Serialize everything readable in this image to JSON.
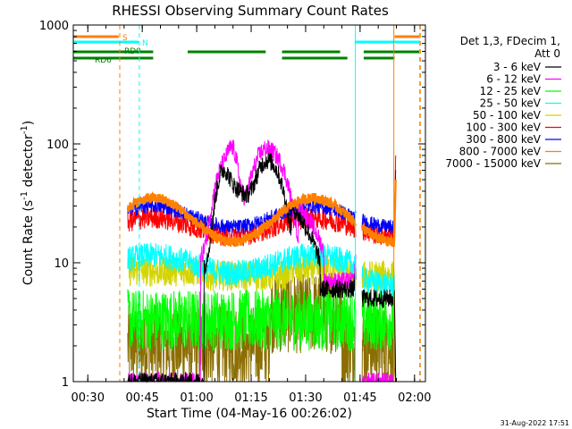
{
  "chart_data": {
    "type": "line",
    "title": "RHESSI Observing Summary Count Rates",
    "xlabel": "Start Time (04-May-16 00:26:02)",
    "ylabel_main": "Count Rate (s",
    "ylabel_sup": "-1",
    "ylabel_mid": " detector",
    "ylabel_sup2": "-1",
    "ylabel_end": ")",
    "x_range_min": [
      26.0,
      123.0
    ],
    "y_scale": "log",
    "y_range": [
      1,
      1000
    ],
    "x_ticks": [
      {
        "min": 30,
        "label": "00:30"
      },
      {
        "min": 45,
        "label": "00:45"
      },
      {
        "min": 60,
        "label": "01:00"
      },
      {
        "min": 75,
        "label": "01:15"
      },
      {
        "min": 90,
        "label": "01:30"
      },
      {
        "min": 105,
        "label": "01:45"
      },
      {
        "min": 120,
        "label": "02:00"
      }
    ],
    "y_ticks": [
      {
        "value": 1,
        "label": "1"
      },
      {
        "value": 10,
        "label": "10"
      },
      {
        "value": 100,
        "label": "100"
      },
      {
        "value": 1000,
        "label": "1000"
      }
    ],
    "legend_header": [
      "Det 1,3, FDecim 1,",
      "Att 0"
    ],
    "series": [
      {
        "name": "3 - 6 keV",
        "color": "#000000"
      },
      {
        "name": "6 - 12 keV",
        "color": "#ff00ff"
      },
      {
        "name": "12 - 25 keV",
        "color": "#00ff00"
      },
      {
        "name": "25 - 50 keV",
        "color": "#00ffff"
      },
      {
        "name": "50 - 100 keV",
        "color": "#d4d400"
      },
      {
        "name": "100 - 300 keV",
        "color": "#ff0000"
      },
      {
        "name": "300 - 800 keV",
        "color": "#0000ff"
      },
      {
        "name": "800 - 7000 keV",
        "color": "#ff8000"
      },
      {
        "name": "7000 - 15000 keV",
        "color": "#8b6d00"
      }
    ],
    "flags": [
      {
        "label": "S",
        "color": "#ff8000",
        "segments": [
          [
            26.0,
            38.5
          ],
          [
            114.5,
            121.5
          ]
        ]
      },
      {
        "label": "N",
        "color": "#00ffff",
        "segments": [
          [
            26.0,
            44.0
          ],
          [
            103.5,
            121.5
          ]
        ]
      },
      {
        "label": "RD0",
        "color": "#008000",
        "segments": [
          [
            26.0,
            48.0
          ],
          [
            57.5,
            79.0
          ],
          [
            83.5,
            99.5
          ],
          [
            106.0,
            121.5
          ]
        ]
      },
      {
        "label": "RD6",
        "color": "#008000",
        "segments": [
          [
            26.0,
            34.0
          ],
          [
            34.0,
            48.0
          ],
          [
            83.5,
            101.5
          ],
          [
            106.0,
            114.5
          ]
        ]
      }
    ],
    "vlines": [
      {
        "min": 38.8,
        "color": "#ff8000",
        "style": "dash"
      },
      {
        "min": 44.2,
        "color": "#00ffff",
        "style": "dash"
      },
      {
        "min": 103.7,
        "color": "#00ffff",
        "style": "solid"
      },
      {
        "min": 114.3,
        "color": "#ff8000",
        "style": "solid"
      },
      {
        "min": 121.4,
        "color": "#00ffff",
        "style": "dash"
      },
      {
        "min": 121.6,
        "color": "#ff8000",
        "style": "dash"
      }
    ],
    "data_start_min": 41.0,
    "data_end_min": 114.5,
    "gap": {
      "start_min": 103.8,
      "end_min": 105.5
    }
  },
  "footer": {
    "timestamp": "31-Aug-2022 17:51"
  }
}
